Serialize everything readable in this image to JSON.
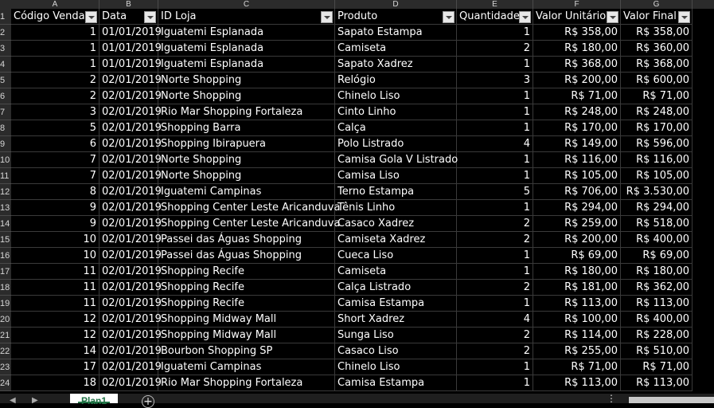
{
  "columns": [
    "A",
    "B",
    "C",
    "D",
    "E",
    "F",
    "G"
  ],
  "headers": [
    "Código Venda",
    "Data",
    "ID Loja",
    "Produto",
    "Quantidade",
    "Valor Unitário",
    "Valor Final"
  ],
  "row_numbers": [
    "1",
    "2",
    "3",
    "4",
    "5",
    "6",
    "7",
    "8",
    "9",
    "10",
    "11",
    "12",
    "13",
    "14",
    "15",
    "16",
    "17",
    "18",
    "19",
    "20",
    "21",
    "22",
    "23",
    "24"
  ],
  "rows": [
    [
      "1",
      "01/01/2019",
      "Iguatemi Esplanada",
      "Sapato Estampa",
      "1",
      "R$ 358,00",
      "R$ 358,00"
    ],
    [
      "1",
      "01/01/2019",
      "Iguatemi Esplanada",
      "Camiseta",
      "2",
      "R$ 180,00",
      "R$ 360,00"
    ],
    [
      "1",
      "01/01/2019",
      "Iguatemi Esplanada",
      "Sapato Xadrez",
      "1",
      "R$ 368,00",
      "R$ 368,00"
    ],
    [
      "2",
      "02/01/2019",
      "Norte Shopping",
      "Relógio",
      "3",
      "R$ 200,00",
      "R$ 600,00"
    ],
    [
      "2",
      "02/01/2019",
      "Norte Shopping",
      "Chinelo Liso",
      "1",
      "R$ 71,00",
      "R$ 71,00"
    ],
    [
      "3",
      "02/01/2019",
      "Rio Mar Shopping Fortaleza",
      "Cinto Linho",
      "1",
      "R$ 248,00",
      "R$ 248,00"
    ],
    [
      "5",
      "02/01/2019",
      "Shopping Barra",
      "Calça",
      "1",
      "R$ 170,00",
      "R$ 170,00"
    ],
    [
      "6",
      "02/01/2019",
      "Shopping Ibirapuera",
      "Polo Listrado",
      "4",
      "R$ 149,00",
      "R$ 596,00"
    ],
    [
      "7",
      "02/01/2019",
      "Norte Shopping",
      "Camisa Gola V Listrado",
      "1",
      "R$ 116,00",
      "R$ 116,00"
    ],
    [
      "7",
      "02/01/2019",
      "Norte Shopping",
      "Camisa Liso",
      "1",
      "R$ 105,00",
      "R$ 105,00"
    ],
    [
      "8",
      "02/01/2019",
      "Iguatemi Campinas",
      "Terno Estampa",
      "5",
      "R$ 706,00",
      "R$ 3.530,00"
    ],
    [
      "9",
      "02/01/2019",
      "Shopping Center Leste Aricanduva",
      "Tênis Linho",
      "1",
      "R$ 294,00",
      "R$ 294,00"
    ],
    [
      "9",
      "02/01/2019",
      "Shopping Center Leste Aricanduva",
      "Casaco Xadrez",
      "2",
      "R$ 259,00",
      "R$ 518,00"
    ],
    [
      "10",
      "02/01/2019",
      "Passei das Águas Shopping",
      "Camiseta Xadrez",
      "2",
      "R$ 200,00",
      "R$ 400,00"
    ],
    [
      "10",
      "02/01/2019",
      "Passei das Águas Shopping",
      "Cueca Liso",
      "1",
      "R$ 69,00",
      "R$ 69,00"
    ],
    [
      "11",
      "02/01/2019",
      "Shopping Recife",
      "Camiseta",
      "1",
      "R$ 180,00",
      "R$ 180,00"
    ],
    [
      "11",
      "02/01/2019",
      "Shopping Recife",
      "Calça Listrado",
      "2",
      "R$ 181,00",
      "R$ 362,00"
    ],
    [
      "11",
      "02/01/2019",
      "Shopping Recife",
      "Camisa Estampa",
      "1",
      "R$ 113,00",
      "R$ 113,00"
    ],
    [
      "12",
      "02/01/2019",
      "Shopping Midway Mall",
      "Short Xadrez",
      "4",
      "R$ 100,00",
      "R$ 400,00"
    ],
    [
      "12",
      "02/01/2019",
      "Shopping Midway Mall",
      "Sunga Liso",
      "2",
      "R$ 114,00",
      "R$ 228,00"
    ],
    [
      "14",
      "02/01/2019",
      "Bourbon Shopping SP",
      "Casaco Liso",
      "2",
      "R$ 255,00",
      "R$ 510,00"
    ],
    [
      "17",
      "02/01/2019",
      "Iguatemi Campinas",
      "Chinelo Liso",
      "1",
      "R$ 71,00",
      "R$ 71,00"
    ],
    [
      "18",
      "02/01/2019",
      "Rio Mar Shopping Fortaleza",
      "Camisa Estampa",
      "1",
      "R$ 113,00",
      "R$ 113,00"
    ]
  ],
  "sheet_tab": "Plan1",
  "add_sheet_symbol": "+",
  "more_symbol": "⋮",
  "colors": {
    "sheet_bg": "#000000",
    "header_bg": "#2b2b2b",
    "accent": "#217346"
  }
}
